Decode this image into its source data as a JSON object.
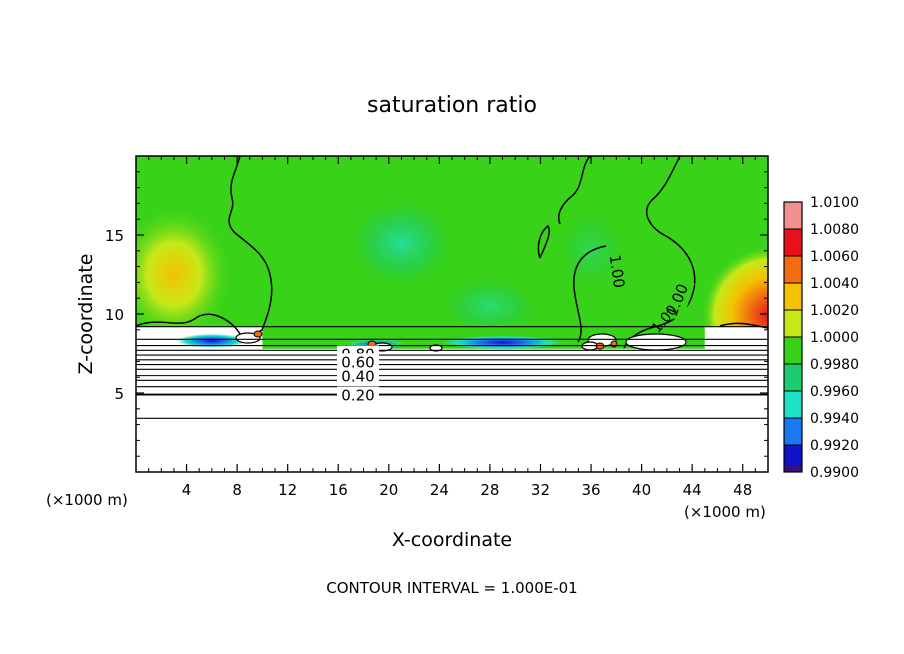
{
  "chart_data": {
    "type": "heatmap",
    "title": "saturation ratio",
    "xlabel": "X-coordinate",
    "ylabel": "Z-coordinate",
    "x_unit_label_left": "(×1000 m)",
    "x_unit_label_right": "(×1000 m)",
    "footer": "CONTOUR INTERVAL = 1.000E-01",
    "xlim": [
      0,
      50
    ],
    "ylim": [
      0,
      20
    ],
    "xticks": [
      4,
      8,
      12,
      16,
      20,
      24,
      28,
      32,
      36,
      40,
      44,
      48
    ],
    "yticks": [
      5,
      10,
      15
    ],
    "colorbar": {
      "levels": [
        "1.0100",
        "1.0080",
        "1.0060",
        "1.0040",
        "1.0020",
        "1.0000",
        "0.9980",
        "0.9960",
        "0.9940",
        "0.9920",
        "0.9900"
      ],
      "colors": [
        "#f29090",
        "#e8101a",
        "#f26d0f",
        "#f3c200",
        "#c6e819",
        "#38d219",
        "#1dcc6e",
        "#1ee1c6",
        "#1979f0",
        "#1111c8",
        "#3c0f7c"
      ]
    },
    "contours": [
      {
        "value": 1.0,
        "label": "1.00"
      },
      {
        "value": 0.8,
        "label": "0.80"
      },
      {
        "value": 0.6,
        "label": "0.60"
      },
      {
        "value": 0.4,
        "label": "0.40"
      },
      {
        "value": 0.2,
        "label": "0.20"
      }
    ],
    "field_regions": [
      {
        "region": "upper domain z>9",
        "value_range": [
          0.998,
          1.002
        ],
        "dominant": 1.0
      },
      {
        "region": "top-left corner",
        "value_range": [
          1.002,
          1.004
        ]
      },
      {
        "region": "top-right corner near x=48",
        "value_range": [
          1.004,
          1.008
        ]
      },
      {
        "region": "cloud base near z=8, x=4-10 and x=28-34",
        "value_range": [
          0.992,
          0.996
        ]
      },
      {
        "region": "below z=7.5",
        "value": "< 0.99 (white, contoured)"
      }
    ]
  }
}
